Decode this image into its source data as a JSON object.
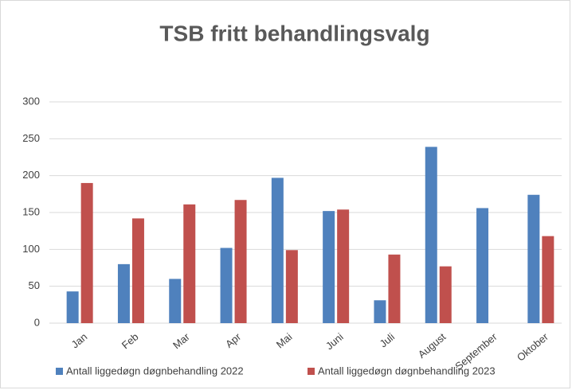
{
  "chart_data": {
    "type": "bar",
    "title": "TSB fritt behandlingsvalg",
    "categories": [
      "Jan",
      "Feb",
      "Mar",
      "Apr",
      "Mai",
      "Juni",
      "Juli",
      "August",
      "September",
      "Oktober"
    ],
    "series": [
      {
        "name": "Antall liggedøgn døgnbehandling 2022",
        "color": "#4f81bd",
        "values": [
          43,
          80,
          60,
          102,
          197,
          152,
          31,
          239,
          156,
          174
        ]
      },
      {
        "name": "Antall liggedøgn døgnbehandling 2023",
        "color": "#c0504d",
        "values": [
          190,
          142,
          161,
          167,
          99,
          154,
          93,
          77,
          null,
          118
        ]
      }
    ],
    "ylim": [
      0,
      300
    ],
    "yticks": [
      0,
      50,
      100,
      150,
      200,
      250,
      300
    ],
    "grid": true,
    "legend": "bottom"
  }
}
